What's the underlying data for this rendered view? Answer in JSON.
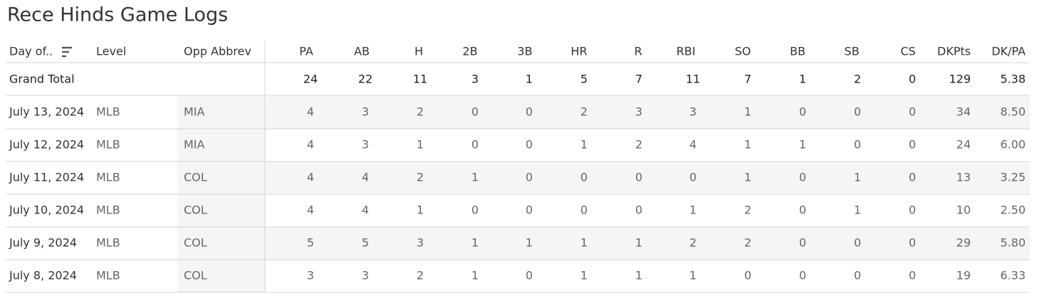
{
  "header": {
    "title": "Rece Hinds Game Logs"
  },
  "table": {
    "columns": [
      "Day of..",
      "Level",
      "Opp Abbrev",
      "PA",
      "AB",
      "H",
      "2B",
      "3B",
      "HR",
      "R",
      "RBI",
      "SO",
      "BB",
      "SB",
      "CS",
      "DKPts",
      "DK/PA"
    ],
    "grand_total": [
      "Grand Total",
      "24",
      "22",
      "11",
      "3",
      "1",
      "5",
      "7",
      "11",
      "7",
      "1",
      "2",
      "0",
      "129",
      "5.38"
    ],
    "rows": [
      [
        "July 13, 2024",
        "MLB",
        "MIA",
        "4",
        "3",
        "2",
        "0",
        "0",
        "2",
        "3",
        "3",
        "1",
        "0",
        "0",
        "0",
        "34",
        "8.50"
      ],
      [
        "July 12, 2024",
        "MLB",
        "MIA",
        "4",
        "3",
        "1",
        "0",
        "0",
        "1",
        "2",
        "4",
        "1",
        "1",
        "0",
        "0",
        "24",
        "6.00"
      ],
      [
        "July 11, 2024",
        "MLB",
        "COL",
        "4",
        "4",
        "2",
        "1",
        "0",
        "0",
        "0",
        "0",
        "1",
        "0",
        "1",
        "0",
        "13",
        "3.25"
      ],
      [
        "July 10, 2024",
        "MLB",
        "COL",
        "4",
        "4",
        "1",
        "0",
        "0",
        "0",
        "0",
        "1",
        "2",
        "0",
        "1",
        "0",
        "10",
        "2.50"
      ],
      [
        "July 9, 2024",
        "MLB",
        "COL",
        "5",
        "5",
        "3",
        "1",
        "1",
        "1",
        "1",
        "2",
        "2",
        "0",
        "0",
        "0",
        "29",
        "5.80"
      ],
      [
        "July 8, 2024",
        "MLB",
        "COL",
        "3",
        "3",
        "2",
        "1",
        "0",
        "1",
        "1",
        "1",
        "0",
        "0",
        "0",
        "0",
        "19",
        "6.33"
      ]
    ]
  }
}
